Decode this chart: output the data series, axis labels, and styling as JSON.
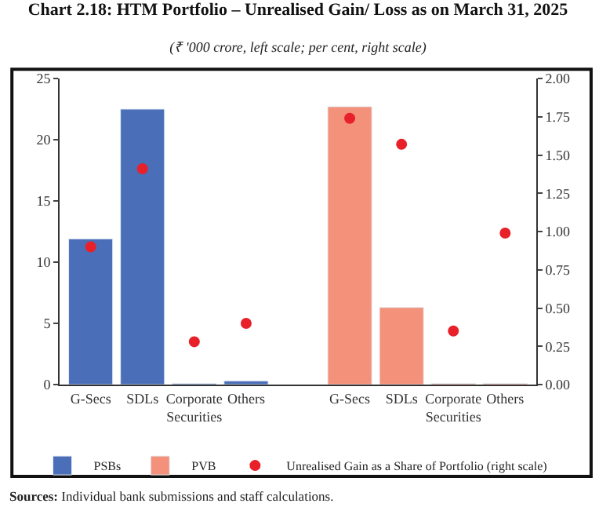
{
  "chart_data": {
    "type": "bar",
    "title": "Chart 2.18: HTM Portfolio – Unrealised Gain/ Loss as on March 31, 2025",
    "subtitle": "(₹ '000 crore, left scale; per cent, right scale)",
    "categories": [
      "G-Secs",
      "SDLs",
      "Corporate Securities",
      "Others",
      null,
      "G-Secs",
      "SDLs",
      "Corporate Securities",
      "Others"
    ],
    "series": [
      {
        "name": "PSBs",
        "color": "#4a6fb8",
        "values": [
          11.9,
          22.5,
          0.1,
          0.3,
          null,
          null,
          null,
          null,
          null
        ]
      },
      {
        "name": "PVB",
        "color": "#f4917a",
        "values": [
          null,
          null,
          null,
          null,
          null,
          22.7,
          6.3,
          0.1,
          0.1
        ]
      },
      {
        "name": "Unrealised Gain as a Share of Portfolio (right scale)",
        "type": "scatter",
        "axis": "y2",
        "color": "#e8202a",
        "marker": "circle",
        "values": [
          0.9,
          1.41,
          0.28,
          0.4,
          null,
          1.74,
          1.57,
          0.35,
          0.99
        ]
      }
    ],
    "ylim": [
      0,
      25
    ],
    "yticks": [
      0,
      5,
      10,
      15,
      20,
      25
    ],
    "y2lim": [
      0,
      2
    ],
    "y2ticks": [
      {
        "value": 0,
        "label": "0.00"
      },
      {
        "value": 0.25,
        "label": "0.25"
      },
      {
        "value": 0.5,
        "label": "0.50"
      },
      {
        "value": 0.75,
        "label": "0.75"
      },
      {
        "value": 1,
        "label": "1.00"
      },
      {
        "value": 1.25,
        "label": "1.25"
      },
      {
        "value": 1.5,
        "label": "1.50"
      },
      {
        "value": 1.75,
        "label": "1.75"
      },
      {
        "value": 2,
        "label": "2.00"
      }
    ],
    "legend": "bottom",
    "annotations": [
      "Sources: Individual bank submissions and staff calculations."
    ]
  }
}
